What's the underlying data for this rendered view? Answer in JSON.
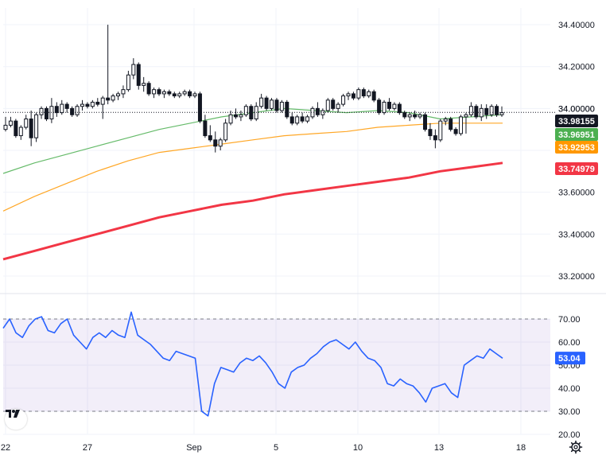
{
  "chart_data": [
    {
      "type": "candlestick",
      "title": "",
      "xlabel": "",
      "ylabel": "",
      "ylim": [
        33.12,
        34.48
      ],
      "y_ticks": [
        "34.40000",
        "34.20000",
        "34.00000",
        "33.80000",
        "33.60000",
        "33.40000",
        "33.20000"
      ],
      "x_tick_labels": [
        "22",
        "27",
        "Sep",
        "5",
        "10",
        "13",
        "18"
      ],
      "grid": true,
      "candles_ohlc": [
        [
          33.9,
          33.96,
          33.89,
          33.92
        ],
        [
          33.92,
          33.96,
          33.91,
          33.94
        ],
        [
          33.94,
          33.95,
          33.86,
          33.87
        ],
        [
          33.87,
          33.92,
          33.85,
          33.91
        ],
        [
          33.91,
          33.97,
          33.9,
          33.95
        ],
        [
          33.95,
          33.99,
          33.82,
          33.86
        ],
        [
          33.86,
          33.98,
          33.84,
          33.97
        ],
        [
          33.97,
          34.01,
          33.95,
          34.0
        ],
        [
          34.0,
          34.01,
          33.94,
          33.95
        ],
        [
          33.95,
          34.05,
          33.93,
          34.01
        ],
        [
          34.01,
          34.03,
          33.96,
          33.98
        ],
        [
          33.98,
          34.04,
          33.97,
          34.02
        ],
        [
          34.02,
          34.03,
          33.98,
          34.0
        ],
        [
          34.0,
          34.01,
          33.96,
          33.97
        ],
        [
          33.97,
          34.02,
          33.96,
          34.01
        ],
        [
          34.01,
          34.04,
          33.99,
          34.02
        ],
        [
          34.02,
          34.03,
          34.0,
          34.01
        ],
        [
          34.01,
          34.04,
          34.0,
          34.03
        ],
        [
          34.03,
          34.05,
          34.01,
          34.02
        ],
        [
          34.02,
          34.06,
          33.95,
          34.05
        ],
        [
          34.05,
          34.4,
          34.02,
          34.04
        ],
        [
          34.04,
          34.07,
          34.03,
          34.06
        ],
        [
          34.06,
          34.08,
          34.04,
          34.07
        ],
        [
          34.07,
          34.11,
          34.05,
          34.09
        ],
        [
          34.09,
          34.18,
          34.08,
          34.16
        ],
        [
          34.16,
          34.24,
          34.14,
          34.21
        ],
        [
          34.21,
          34.22,
          34.09,
          34.11
        ],
        [
          34.11,
          34.15,
          34.08,
          34.12
        ],
        [
          34.12,
          34.13,
          34.06,
          34.07
        ],
        [
          34.07,
          34.1,
          34.05,
          34.09
        ],
        [
          34.09,
          34.1,
          34.06,
          34.07
        ],
        [
          34.07,
          34.09,
          34.05,
          34.08
        ],
        [
          34.08,
          34.09,
          34.06,
          34.07
        ],
        [
          34.07,
          34.08,
          34.05,
          34.06
        ],
        [
          34.06,
          34.08,
          34.05,
          34.07
        ],
        [
          34.07,
          34.09,
          34.06,
          34.08
        ],
        [
          34.08,
          34.09,
          34.05,
          34.06
        ],
        [
          34.06,
          34.08,
          34.05,
          34.07
        ],
        [
          34.07,
          34.08,
          33.93,
          33.94
        ],
        [
          33.94,
          33.97,
          33.86,
          33.87
        ],
        [
          33.87,
          33.92,
          33.84,
          33.85
        ],
        [
          33.85,
          33.89,
          33.79,
          33.82
        ],
        [
          33.82,
          33.86,
          33.8,
          33.85
        ],
        [
          33.85,
          33.95,
          33.84,
          33.93
        ],
        [
          33.93,
          33.99,
          33.92,
          33.97
        ],
        [
          33.97,
          34.0,
          33.95,
          33.96
        ],
        [
          33.96,
          33.99,
          33.94,
          33.97
        ],
        [
          33.97,
          34.02,
          33.96,
          34.01
        ],
        [
          34.01,
          34.02,
          33.94,
          33.95
        ],
        [
          33.95,
          34.03,
          33.94,
          34.01
        ],
        [
          34.01,
          34.07,
          34.0,
          34.05
        ],
        [
          34.05,
          34.06,
          33.99,
          34.0
        ],
        [
          34.0,
          34.05,
          33.99,
          34.04
        ],
        [
          34.04,
          34.05,
          33.98,
          33.99
        ],
        [
          33.99,
          34.04,
          33.98,
          34.03
        ],
        [
          34.03,
          34.04,
          33.95,
          33.96
        ],
        [
          33.96,
          33.98,
          33.92,
          33.93
        ],
        [
          33.93,
          33.97,
          33.92,
          33.96
        ],
        [
          33.96,
          33.98,
          33.93,
          33.94
        ],
        [
          33.94,
          33.97,
          33.93,
          33.96
        ],
        [
          33.96,
          34.01,
          33.95,
          34.0
        ],
        [
          34.0,
          34.03,
          33.96,
          33.97
        ],
        [
          33.97,
          34.0,
          33.95,
          33.99
        ],
        [
          33.99,
          34.05,
          33.98,
          34.04
        ],
        [
          34.04,
          34.05,
          33.99,
          34.0
        ],
        [
          34.0,
          34.03,
          33.98,
          34.02
        ],
        [
          34.02,
          34.07,
          34.01,
          34.06
        ],
        [
          34.06,
          34.08,
          34.04,
          34.07
        ],
        [
          34.07,
          34.08,
          34.04,
          34.05
        ],
        [
          34.05,
          34.1,
          34.04,
          34.09
        ],
        [
          34.09,
          34.1,
          34.05,
          34.06
        ],
        [
          34.06,
          34.09,
          34.05,
          34.08
        ],
        [
          34.08,
          34.09,
          34.03,
          34.04
        ],
        [
          34.04,
          34.05,
          33.97,
          33.98
        ],
        [
          33.98,
          34.04,
          33.97,
          34.03
        ],
        [
          34.03,
          34.05,
          33.99,
          34.0
        ],
        [
          34.0,
          34.03,
          33.99,
          34.02
        ],
        [
          34.02,
          34.03,
          33.97,
          33.98
        ],
        [
          33.98,
          33.99,
          33.95,
          33.96
        ],
        [
          33.96,
          33.98,
          33.94,
          33.97
        ],
        [
          33.97,
          33.99,
          33.95,
          33.96
        ],
        [
          33.96,
          33.98,
          33.95,
          33.97
        ],
        [
          33.97,
          33.98,
          33.89,
          33.9
        ],
        [
          33.9,
          33.93,
          33.85,
          33.87
        ],
        [
          33.87,
          33.9,
          33.81,
          33.85
        ],
        [
          33.85,
          33.95,
          33.84,
          33.94
        ],
        [
          33.94,
          33.96,
          33.92,
          33.95
        ],
        [
          33.95,
          33.96,
          33.89,
          33.9
        ],
        [
          33.9,
          33.91,
          33.87,
          33.88
        ],
        [
          33.88,
          33.97,
          33.87,
          33.96
        ],
        [
          33.96,
          33.98,
          33.88,
          33.97
        ],
        [
          33.97,
          34.03,
          33.96,
          34.01
        ],
        [
          34.01,
          34.02,
          33.95,
          33.96
        ],
        [
          33.96,
          34.02,
          33.94,
          34.0
        ],
        [
          34.0,
          34.02,
          33.95,
          33.97
        ],
        [
          33.97,
          34.02,
          33.96,
          34.01
        ],
        [
          34.01,
          34.02,
          33.96,
          33.97
        ],
        [
          33.97,
          34.01,
          33.96,
          33.98
        ]
      ],
      "series": [
        {
          "name": "",
          "color": "#66bb6a",
          "type": "moving-average",
          "values": [
            33.69,
            33.74,
            33.78,
            33.82,
            33.86,
            33.9,
            33.93,
            33.96,
            33.98,
            34.0,
            33.99,
            33.98,
            33.99,
            33.98,
            33.95,
            33.96,
            33.97
          ]
        },
        {
          "name": "",
          "color": "#ffa726",
          "type": "moving-average",
          "values": [
            33.51,
            33.58,
            33.64,
            33.7,
            33.75,
            33.79,
            33.81,
            33.83,
            33.85,
            33.87,
            33.88,
            33.89,
            33.91,
            33.92,
            33.93,
            33.93,
            33.93
          ]
        },
        {
          "name": "",
          "color": "#f23645",
          "type": "moving-average",
          "values": [
            33.28,
            33.32,
            33.36,
            33.4,
            33.44,
            33.48,
            33.51,
            33.54,
            33.56,
            33.59,
            33.61,
            33.63,
            33.65,
            33.67,
            33.7,
            33.72,
            33.74
          ]
        }
      ],
      "price_labels": [
        {
          "text": "33.98155",
          "color": "#131722"
        },
        {
          "text": "33.96951",
          "color": "#4caf50"
        },
        {
          "text": "33.92953",
          "color": "#ff9800"
        },
        {
          "text": "33.74979",
          "color": "#f23645"
        }
      ],
      "covered_axis_label": "34.00000",
      "last_price": 33.98155
    },
    {
      "type": "line",
      "title": "",
      "xlabel": "",
      "ylabel": "",
      "ylim": [
        20,
        80
      ],
      "y_ticks": [
        "70.00",
        "60.00",
        "50.00",
        "40.00",
        "30.00",
        "20.00"
      ],
      "band": [
        30,
        70
      ],
      "band_color": "#7e57c2",
      "series": [
        {
          "name": "",
          "color": "#2962ff",
          "values": [
            66,
            70,
            64,
            62,
            67,
            70,
            71,
            65,
            64,
            68,
            70,
            63,
            60,
            57,
            62,
            64,
            62,
            65,
            63,
            62,
            73,
            63,
            61,
            59,
            56,
            53,
            52,
            56,
            55,
            54,
            53,
            30,
            28,
            42,
            49,
            48,
            47,
            51,
            53,
            52,
            54,
            51,
            47,
            42,
            40,
            47,
            49,
            50,
            53,
            55,
            58,
            60,
            61,
            59,
            57,
            60,
            56,
            53,
            52,
            49,
            42,
            41,
            44,
            42,
            41,
            38,
            34,
            40,
            41,
            42,
            38,
            36,
            50,
            52,
            54,
            53,
            57,
            55,
            53
          ],
          "last_value": "53.04"
        }
      ]
    }
  ],
  "ui": {
    "logo_text": "TV",
    "settings_icon": "gear-icon"
  }
}
